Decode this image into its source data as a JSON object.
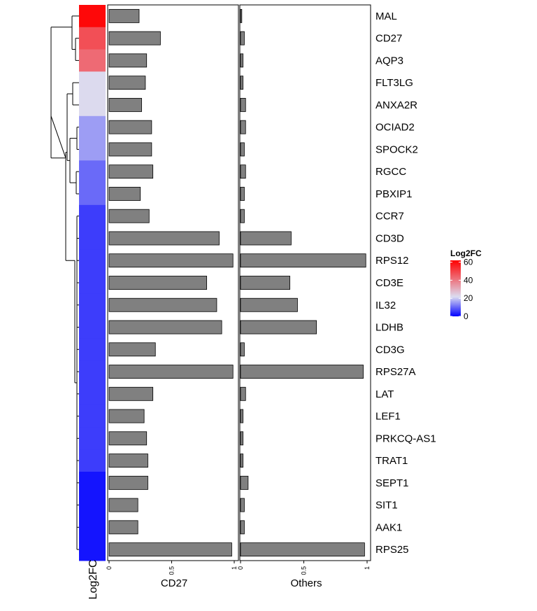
{
  "chart_data": {
    "type": "bar",
    "categories": [
      "MAL",
      "CD27",
      "AQP3",
      "FLT3LG",
      "ANXA2R",
      "OCIAD2",
      "SPOCK2",
      "RGCC",
      "PBXIP1",
      "CCR7",
      "CD3D",
      "RPS12",
      "CD3E",
      "IL32",
      "LDHB",
      "CD3G",
      "RPS27A",
      "LAT",
      "LEF1",
      "PRKCQ-AS1",
      "TRAT1",
      "SEPT1",
      "SIT1",
      "AAK1",
      "RPS25"
    ],
    "series": [
      {
        "name": "CD27",
        "values": [
          0.24,
          0.41,
          0.3,
          0.29,
          0.26,
          0.34,
          0.34,
          0.35,
          0.25,
          0.32,
          0.88,
          0.99,
          0.78,
          0.86,
          0.9,
          0.37,
          0.99,
          0.35,
          0.28,
          0.3,
          0.31,
          0.31,
          0.23,
          0.23,
          0.98
        ]
      },
      {
        "name": "Others",
        "values": [
          0.01,
          0.03,
          0.02,
          0.02,
          0.04,
          0.04,
          0.03,
          0.04,
          0.03,
          0.03,
          0.4,
          0.99,
          0.39,
          0.45,
          0.6,
          0.03,
          0.97,
          0.04,
          0.02,
          0.02,
          0.02,
          0.06,
          0.03,
          0.03,
          0.98
        ]
      }
    ],
    "log2fc": [
      60.5,
      47.5,
      42.5,
      22.0,
      22.0,
      15.5,
      15.5,
      10.5,
      10.5,
      6.0,
      6.0,
      6.0,
      6.0,
      6.0,
      6.0,
      6.0,
      6.0,
      6.0,
      6.0,
      6.0,
      6.0,
      2.0,
      2.0,
      2.0,
      2.0
    ],
    "xlim": [
      0,
      1
    ],
    "x_ticks": [
      "0",
      "0.5",
      "1"
    ],
    "panel_labels": [
      "CD27",
      "Others"
    ],
    "heatmap_label": "Log2FC",
    "legend": {
      "title": "Log2FC",
      "ticks": [
        "0",
        "20",
        "40",
        "60"
      ],
      "tick_values": [
        0,
        20,
        40,
        60
      ],
      "range": [
        0,
        62
      ],
      "colors": {
        "low": "#0000FF",
        "mid": "#DCDCF0",
        "high": "#FF0000"
      },
      "placement": "right"
    },
    "bar_color": "#808080",
    "dendrogram": "left"
  }
}
